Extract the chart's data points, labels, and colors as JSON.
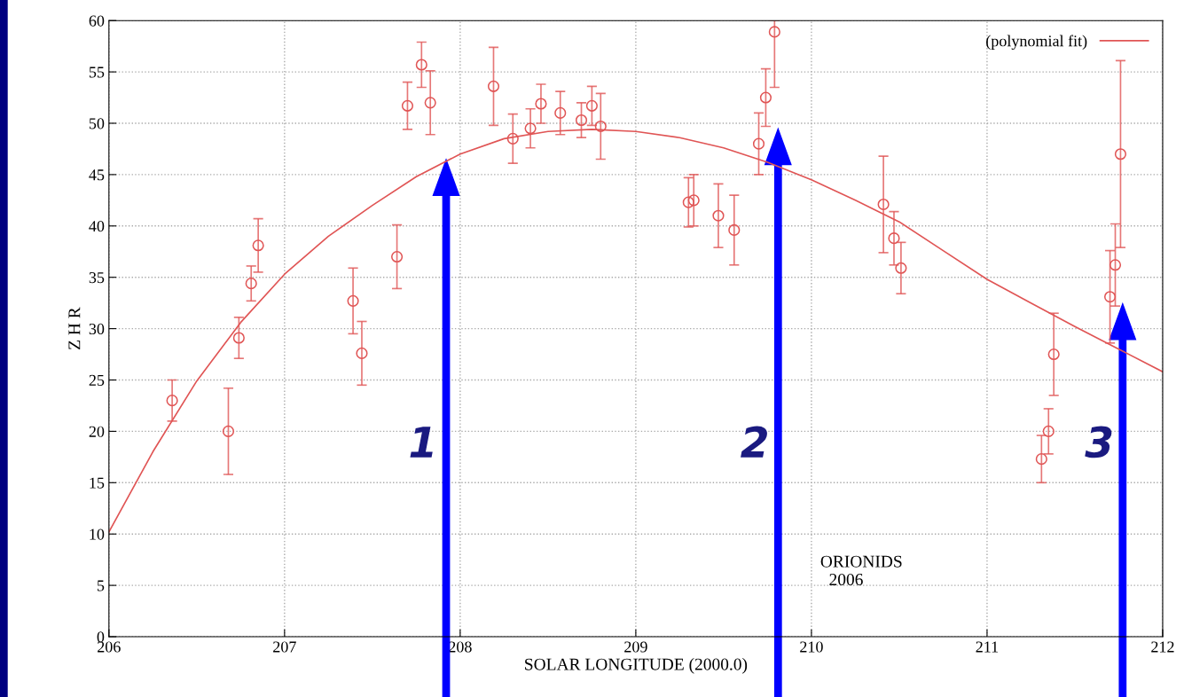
{
  "chart_data": {
    "type": "scatter",
    "xlabel": "SOLAR LONGITUDE (2000.0)",
    "ylabel": "Z H R",
    "xlim": [
      206,
      212
    ],
    "xticks": [
      206,
      207,
      208,
      209,
      210,
      211,
      212
    ],
    "ylim": [
      0,
      60
    ],
    "yticks": [
      0,
      5,
      10,
      15,
      20,
      25,
      30,
      35,
      40,
      45,
      50,
      55,
      60
    ],
    "grid": true,
    "legend": "top right",
    "marker": "circle",
    "series": [
      {
        "type": "scatter",
        "color": "#e05555",
        "x": [
          206.36,
          206.68,
          206.74,
          206.81,
          206.85,
          207.39,
          207.44,
          207.64,
          207.7,
          207.78,
          207.83,
          208.19,
          208.3,
          208.4,
          208.46,
          208.57,
          208.69,
          208.75,
          208.8,
          209.3,
          209.33,
          209.47,
          209.56,
          209.7,
          209.74,
          209.79,
          210.41,
          210.47,
          210.51,
          211.31,
          211.35,
          211.38,
          211.7,
          211.73,
          211.76
        ],
        "values": [
          23.0,
          20.0,
          29.1,
          34.4,
          38.1,
          32.7,
          27.6,
          37.0,
          51.7,
          55.7,
          52.0,
          53.6,
          48.5,
          49.5,
          51.9,
          51.0,
          50.3,
          51.7,
          49.7,
          42.3,
          42.5,
          41.0,
          39.6,
          48.0,
          52.5,
          58.9,
          42.1,
          38.8,
          35.9,
          17.3,
          20.0,
          27.5,
          33.1,
          36.2,
          47.0
        ],
        "errors": [
          2.0,
          4.2,
          2.0,
          1.7,
          2.6,
          3.2,
          3.1,
          3.1,
          2.3,
          2.2,
          3.1,
          3.8,
          2.4,
          1.9,
          1.9,
          2.1,
          1.7,
          1.9,
          3.2,
          2.4,
          2.5,
          3.1,
          3.4,
          3.0,
          2.8,
          [
            53.5,
            60
          ],
          4.7,
          2.6,
          2.5,
          2.3,
          2.2,
          4.0,
          4.5,
          4.0,
          9.1
        ]
      },
      {
        "type": "line",
        "name": "(polynomial fit)",
        "color": "#e05555",
        "marker": "none",
        "line_style": "solid",
        "x": [
          206.0,
          206.25,
          206.5,
          206.75,
          207.0,
          207.25,
          207.5,
          207.75,
          208.0,
          208.25,
          208.5,
          208.75,
          209.0,
          209.25,
          209.5,
          209.75,
          210.0,
          210.25,
          210.5,
          210.75,
          211.0,
          211.25,
          211.5,
          211.75,
          212.0
        ],
        "values": [
          10.2,
          18.0,
          24.9,
          30.6,
          35.3,
          39.0,
          42.0,
          44.8,
          47.0,
          48.5,
          49.2,
          49.4,
          49.2,
          48.6,
          47.6,
          46.2,
          44.5,
          42.5,
          40.4,
          37.6,
          34.8,
          32.5,
          30.2,
          28.0,
          25.8
        ]
      }
    ],
    "annotations": [
      "ORIONIDS\n  2006",
      "1",
      "2",
      "3"
    ]
  }
}
